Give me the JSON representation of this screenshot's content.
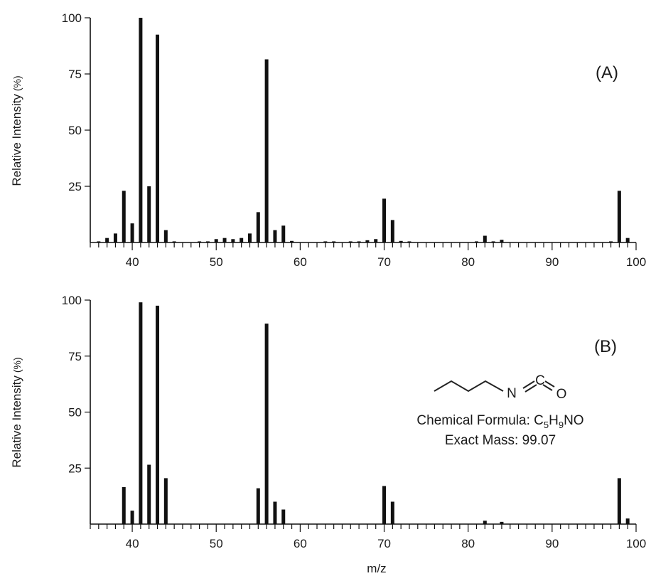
{
  "chart_data": [
    {
      "type": "bar",
      "panel_label": "(A)",
      "ylabel": "Relative Intensity",
      "ylabel_unit": "(%)",
      "xlabel": "",
      "xlim": [
        35,
        100
      ],
      "ylim": [
        0,
        100
      ],
      "x_ticks": [
        "40",
        "50",
        "60",
        "70",
        "80",
        "90",
        "100"
      ],
      "y_ticks": [
        "25",
        "50",
        "75",
        "100"
      ],
      "x": [
        36,
        37,
        38,
        39,
        40,
        41,
        42,
        43,
        44,
        45,
        48,
        49,
        50,
        51,
        52,
        53,
        54,
        55,
        56,
        57,
        58,
        59,
        63,
        64,
        66,
        67,
        68,
        69,
        70,
        71,
        72,
        73,
        81,
        82,
        83,
        84,
        97,
        98,
        99
      ],
      "values": [
        0.5,
        2,
        4,
        23,
        8.5,
        100,
        25,
        92.5,
        5.5,
        0.5,
        0.5,
        0.5,
        1.5,
        2,
        1.5,
        2,
        4,
        13.5,
        81.5,
        5.5,
        7.5,
        0.7,
        0.5,
        0.5,
        0.5,
        0.5,
        1,
        1.5,
        19.5,
        10,
        0.7,
        0.5,
        0.5,
        3,
        0.5,
        1.2,
        0.5,
        23,
        2
      ]
    },
    {
      "type": "bar",
      "panel_label": "(B)",
      "ylabel": "Relative Intensity",
      "ylabel_unit": "(%)",
      "xlabel": "m/z",
      "xlim": [
        35,
        100
      ],
      "ylim": [
        0,
        100
      ],
      "x_ticks": [
        "40",
        "50",
        "60",
        "70",
        "80",
        "90",
        "100"
      ],
      "y_ticks": [
        "25",
        "50",
        "75",
        "100"
      ],
      "x": [
        39,
        40,
        41,
        42,
        43,
        44,
        55,
        56,
        57,
        58,
        70,
        71,
        82,
        84,
        98,
        99
      ],
      "values": [
        16.5,
        6,
        99,
        26.5,
        97.5,
        20.5,
        16,
        89.5,
        10,
        6.5,
        17,
        10,
        1.5,
        1,
        20.5,
        2.5
      ]
    }
  ],
  "compound": {
    "atom_n": "N",
    "atom_c": "C",
    "atom_o": "O",
    "formula_label": "Chemical Formula: ",
    "formula_c": "C",
    "formula_c_count": "5",
    "formula_h": "H",
    "formula_h_count": "9",
    "formula_rest": "NO",
    "mass_text": "Exact Mass: 99.07"
  }
}
